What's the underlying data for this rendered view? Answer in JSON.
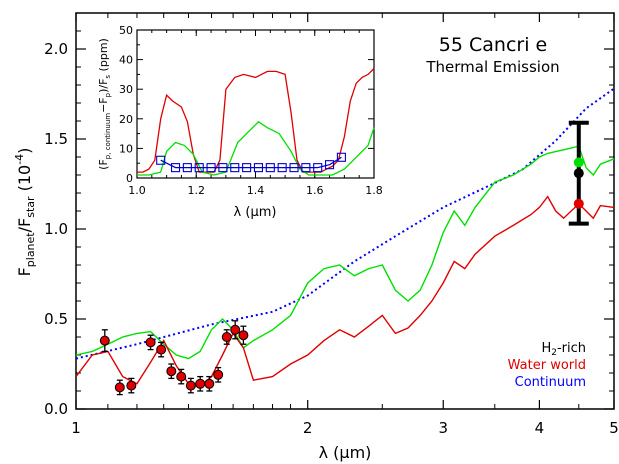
{
  "chart_data": [
    {
      "type": "line",
      "title": "55 Cancri e",
      "subtitle": "Thermal Emission",
      "xlabel": "λ (μm)",
      "ylabel": "F_planet/F_star (10^-4)",
      "x_scale": "log",
      "xlim": [
        1,
        5
      ],
      "ylim": [
        0,
        2.2
      ],
      "x_ticks": [
        "1",
        "2",
        "3",
        "4",
        "5"
      ],
      "y_ticks": [
        "0.0",
        "0.5",
        "1.0",
        "1.5",
        "2.0"
      ],
      "legend": [
        {
          "name": "H2-rich",
          "color": "#00e000"
        },
        {
          "name": "Water world",
          "color": "#e00000"
        },
        {
          "name": "Continuum",
          "color": "#0000ff"
        }
      ],
      "series": [
        {
          "name": "Continuum",
          "style": "dotted",
          "color": "#0000ff",
          "x": [
            1.0,
            1.2,
            1.5,
            1.8,
            2.0,
            2.3,
            2.6,
            3.0,
            3.4,
            3.8,
            4.2,
            4.6,
            5.0
          ],
          "y": [
            0.28,
            0.36,
            0.47,
            0.54,
            0.63,
            0.82,
            0.96,
            1.12,
            1.23,
            1.33,
            1.49,
            1.67,
            1.78
          ]
        },
        {
          "name": "H2-rich",
          "style": "solid",
          "color": "#00e000",
          "x": [
            1.0,
            1.05,
            1.1,
            1.15,
            1.2,
            1.25,
            1.3,
            1.35,
            1.4,
            1.45,
            1.5,
            1.55,
            1.6,
            1.65,
            1.7,
            1.8,
            1.9,
            2.0,
            2.1,
            2.2,
            2.3,
            2.4,
            2.5,
            2.6,
            2.7,
            2.8,
            2.9,
            3.0,
            3.1,
            3.2,
            3.3,
            3.5,
            3.7,
            3.9,
            4.0,
            4.1,
            4.2,
            4.3,
            4.5,
            4.6,
            4.7,
            4.8,
            5.0
          ],
          "y": [
            0.3,
            0.32,
            0.36,
            0.4,
            0.42,
            0.43,
            0.36,
            0.3,
            0.28,
            0.32,
            0.44,
            0.5,
            0.44,
            0.34,
            0.38,
            0.44,
            0.52,
            0.7,
            0.78,
            0.8,
            0.74,
            0.78,
            0.8,
            0.66,
            0.6,
            0.66,
            0.8,
            0.98,
            1.1,
            1.02,
            1.12,
            1.26,
            1.3,
            1.36,
            1.4,
            1.42,
            1.43,
            1.44,
            1.46,
            1.34,
            1.3,
            1.36,
            1.39
          ]
        },
        {
          "name": "Water world",
          "style": "solid",
          "color": "#e00000",
          "x": [
            1.0,
            1.05,
            1.1,
            1.15,
            1.2,
            1.25,
            1.3,
            1.35,
            1.4,
            1.45,
            1.5,
            1.55,
            1.6,
            1.65,
            1.7,
            1.8,
            1.9,
            2.0,
            2.1,
            2.2,
            2.3,
            2.4,
            2.5,
            2.6,
            2.7,
            2.8,
            2.9,
            3.0,
            3.1,
            3.2,
            3.3,
            3.5,
            3.7,
            3.9,
            4.0,
            4.1,
            4.2,
            4.3,
            4.5,
            4.6,
            4.7,
            4.8,
            5.0
          ],
          "y": [
            0.18,
            0.3,
            0.32,
            0.18,
            0.14,
            0.26,
            0.38,
            0.24,
            0.14,
            0.12,
            0.18,
            0.3,
            0.42,
            0.34,
            0.16,
            0.18,
            0.25,
            0.3,
            0.38,
            0.44,
            0.4,
            0.46,
            0.52,
            0.42,
            0.45,
            0.52,
            0.6,
            0.7,
            0.82,
            0.78,
            0.86,
            0.96,
            1.02,
            1.08,
            1.12,
            1.18,
            1.1,
            1.06,
            1.14,
            1.1,
            1.06,
            1.13,
            1.12
          ]
        }
      ],
      "measurements": [
        {
          "x": 1.09,
          "y": 0.38,
          "yerr": 0.06
        },
        {
          "x": 1.14,
          "y": 0.12,
          "yerr": 0.04
        },
        {
          "x": 1.18,
          "y": 0.13,
          "yerr": 0.04
        },
        {
          "x": 1.25,
          "y": 0.37,
          "yerr": 0.04
        },
        {
          "x": 1.29,
          "y": 0.33,
          "yerr": 0.04
        },
        {
          "x": 1.33,
          "y": 0.21,
          "yerr": 0.04
        },
        {
          "x": 1.37,
          "y": 0.18,
          "yerr": 0.04
        },
        {
          "x": 1.41,
          "y": 0.13,
          "yerr": 0.04
        },
        {
          "x": 1.45,
          "y": 0.14,
          "yerr": 0.04
        },
        {
          "x": 1.49,
          "y": 0.14,
          "yerr": 0.04
        },
        {
          "x": 1.53,
          "y": 0.19,
          "yerr": 0.04
        },
        {
          "x": 1.57,
          "y": 0.4,
          "yerr": 0.04
        },
        {
          "x": 1.61,
          "y": 0.44,
          "yerr": 0.05
        },
        {
          "x": 1.65,
          "y": 0.41,
          "yerr": 0.05
        }
      ],
      "spitzer_point": {
        "x": 4.5,
        "y": 1.31,
        "ylow": 1.03,
        "yhigh": 1.59,
        "model_points": [
          {
            "name": "H2-rich",
            "y": 1.37,
            "color": "#00e000"
          },
          {
            "name": "Water world",
            "y": 1.14,
            "color": "#e00000"
          }
        ]
      }
    },
    {
      "type": "line",
      "xlabel": "λ (μm)",
      "ylabel": "(F_p, continuum−F_p)/F_s (ppm)",
      "xlim": [
        1.0,
        1.8
      ],
      "ylim": [
        0,
        50
      ],
      "x_ticks": [
        "1.0",
        "1.2",
        "1.4",
        "1.6",
        "1.8"
      ],
      "y_ticks": [
        "0",
        "10",
        "20",
        "30",
        "40",
        "50"
      ],
      "series": [
        {
          "name": "Water world",
          "color": "#e00000",
          "x": [
            1.0,
            1.02,
            1.04,
            1.06,
            1.08,
            1.1,
            1.12,
            1.15,
            1.17,
            1.19,
            1.21,
            1.24,
            1.26,
            1.28,
            1.3,
            1.33,
            1.36,
            1.4,
            1.44,
            1.47,
            1.5,
            1.52,
            1.54,
            1.56,
            1.58,
            1.6,
            1.62,
            1.64,
            1.66,
            1.68,
            1.7,
            1.72,
            1.74,
            1.76,
            1.78,
            1.8
          ],
          "y": [
            2,
            2,
            3,
            6,
            20,
            28,
            26,
            24,
            19,
            8,
            2,
            2,
            2,
            6,
            30,
            34,
            35,
            34,
            36,
            36,
            35,
            22,
            6,
            2,
            2,
            2,
            2,
            3,
            4,
            6,
            14,
            26,
            32,
            34,
            35,
            37
          ]
        },
        {
          "name": "H2-rich",
          "color": "#00e000",
          "x": [
            1.0,
            1.04,
            1.08,
            1.1,
            1.13,
            1.16,
            1.19,
            1.22,
            1.26,
            1.3,
            1.34,
            1.38,
            1.41,
            1.44,
            1.48,
            1.52,
            1.55,
            1.58,
            1.62,
            1.66,
            1.7,
            1.74,
            1.78,
            1.8
          ],
          "y": [
            1,
            1,
            2,
            9,
            12,
            11,
            8,
            2,
            1,
            2,
            12,
            16,
            19,
            17,
            15,
            9,
            3,
            1,
            1,
            1,
            3,
            7,
            11,
            17
          ]
        },
        {
          "name": "Continuum model",
          "color": "#0000cc",
          "marker": "open-square",
          "x": [
            1.08,
            1.13,
            1.17,
            1.21,
            1.25,
            1.29,
            1.33,
            1.37,
            1.41,
            1.45,
            1.49,
            1.53,
            1.57,
            1.61,
            1.65,
            1.69
          ],
          "y": [
            6,
            3.5,
            3.5,
            3.5,
            3.5,
            3.5,
            3.5,
            3.5,
            3.5,
            3.5,
            3.5,
            3.5,
            3.5,
            3.5,
            4.5,
            7
          ]
        }
      ]
    }
  ]
}
